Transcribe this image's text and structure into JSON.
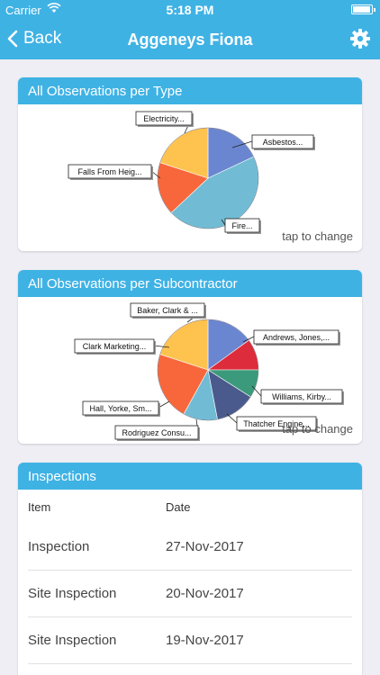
{
  "status": {
    "carrier": "Carrier",
    "time": "5:18 PM"
  },
  "nav": {
    "back_label": "Back",
    "title": "Aggeneys Fiona"
  },
  "card_type": {
    "title": "All Observations per Type",
    "tap_label": "tap to change",
    "chart_data": {
      "type": "pie",
      "categories": [
        "Asbestos...",
        "Fire...",
        "Falls From Heig...",
        "Electricity..."
      ],
      "values": [
        18,
        45,
        17,
        20
      ],
      "colors": [
        "#6b86d0",
        "#71bcd4",
        "#f7673b",
        "#fec24f"
      ]
    }
  },
  "card_sub": {
    "title": "All Observations per Subcontractor",
    "tap_label": "tap to change",
    "chart_data": {
      "type": "pie",
      "categories": [
        "Andrews, Jones,...",
        "Williams, Kirby...",
        "Thatcher Engine...",
        "Rodriguez Consu...",
        "Hall, Yorke, Sm...",
        "Clark Marketing...",
        "Baker, Clark & ..."
      ],
      "values": [
        15,
        10,
        9,
        13,
        11,
        22,
        20
      ],
      "colors": [
        "#6b86d0",
        "#dd2c3b",
        "#3b9a7b",
        "#4a5a8c",
        "#71bcd4",
        "#f7673b",
        "#fec24f"
      ]
    }
  },
  "inspections": {
    "title": "Inspections",
    "col_item": "Item",
    "col_date": "Date",
    "rows": [
      {
        "item": "Inspection",
        "date": "27-Nov-2017"
      },
      {
        "item": "Site Inspection",
        "date": "20-Nov-2017"
      },
      {
        "item": "Site Inspection",
        "date": "19-Nov-2017"
      }
    ]
  }
}
